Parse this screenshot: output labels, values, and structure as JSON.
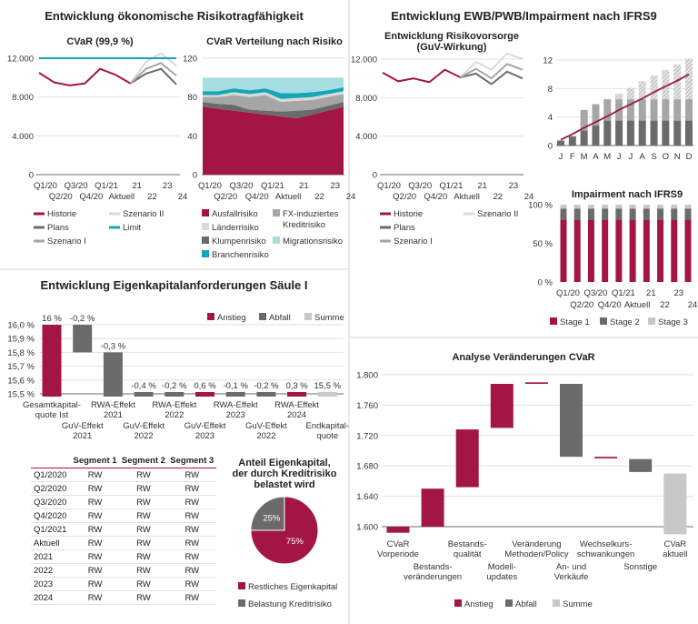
{
  "panels": {
    "risk": {
      "title": "Entwicklung ökonomische Risikotragfähigkeit"
    },
    "ifrs": {
      "title": "Entwicklung EWB/PWB/Impairment nach IFRS9"
    },
    "capital": {
      "title": "Entwicklung Eigenkapitalanforderungen Säule I"
    }
  },
  "colors": {
    "red": "#a31545",
    "dark": "#6b6b6b",
    "mid": "#a6a6a6",
    "light": "#d9d9d9",
    "teal": "#17a5b5",
    "light_teal": "#a5dde2"
  },
  "table": {
    "headers": [
      "",
      "Segment 1",
      "Segment 2",
      "Segment 3"
    ],
    "rows": [
      [
        "Q1/2020",
        "RW",
        "RW",
        "RW"
      ],
      [
        "Q2/2020",
        "RW",
        "RW",
        "RW"
      ],
      [
        "Q3/2020",
        "RW",
        "RW",
        "RW"
      ],
      [
        "Q4/2020",
        "RW",
        "RW",
        "RW"
      ],
      [
        "Q1/2021",
        "RW",
        "RW",
        "RW"
      ],
      [
        "Aktuell",
        "RW",
        "RW",
        "RW"
      ],
      [
        "2021",
        "RW",
        "RW",
        "RW"
      ],
      [
        "2022",
        "RW",
        "RW",
        "RW"
      ],
      [
        "2023",
        "RW",
        "RW",
        "RW"
      ],
      [
        "2024",
        "RW",
        "RW",
        "RW"
      ]
    ]
  },
  "chart_data": [
    {
      "type": "line",
      "title": [
        "CVaR (99,9 %)"
      ],
      "categories": [
        "Q1/20",
        "Q2/20",
        "Q3/20",
        "Q4/20",
        "Q1/21",
        "Aktuell",
        "21",
        "22",
        "23",
        "24"
      ],
      "ylim": [
        0,
        12000
      ],
      "yticks": [
        0,
        4000,
        8000,
        12000
      ],
      "ytick_labels": [
        "0",
        "4.000",
        "8.000",
        "12.000"
      ],
      "grid": true,
      "legend": "bottom",
      "series": [
        {
          "name": "Historie",
          "color": "#a31545",
          "values": [
            10500,
            9500,
            9200,
            9400,
            10900,
            10300,
            9400,
            null,
            null,
            null
          ]
        },
        {
          "name": "Szenario II",
          "color": "#dadada",
          "values": [
            null,
            null,
            null,
            null,
            null,
            null,
            9400,
            11600,
            12500,
            11200
          ]
        },
        {
          "name": "Plans",
          "color": "#6b6b6b",
          "values": [
            null,
            null,
            null,
            null,
            null,
            null,
            9400,
            10400,
            10900,
            9300
          ]
        },
        {
          "name": "Limit",
          "color": "#17a5b5",
          "values": [
            12000,
            12000,
            12000,
            12000,
            12000,
            12000,
            12000,
            12000,
            12000,
            12000
          ]
        },
        {
          "name": "Szenario I",
          "color": "#a6a6a6",
          "values": [
            null,
            null,
            null,
            null,
            null,
            null,
            9400,
            10900,
            11500,
            10200
          ]
        }
      ]
    },
    {
      "type": "area",
      "title": [
        "CVaR Verteilung nach Risiko"
      ],
      "categories": [
        "Q1/20",
        "Q2/20",
        "Q3/20",
        "Q4/20",
        "Q1/21",
        "Aktuell",
        "21",
        "22",
        "23",
        "24"
      ],
      "ylim": [
        0,
        120
      ],
      "yticks": [
        0,
        40,
        80,
        120
      ],
      "ytick_labels": [
        "0",
        "40",
        "80",
        "120"
      ],
      "grid": true,
      "legend": "bottom",
      "stacked": true,
      "series": [
        {
          "name": "Ausfallrisiko",
          "color": "#a31545",
          "values": [
            70,
            68,
            66,
            64,
            62,
            60,
            58,
            62,
            66,
            70
          ]
        },
        {
          "name": "Klumpenrisiko",
          "color": "#6b6b6b",
          "values": [
            5,
            5,
            6,
            3,
            4,
            5,
            8,
            5,
            5,
            5
          ]
        },
        {
          "name": [
            "FX-induziertes",
            "Kreditrisiko"
          ],
          "color": "#a6a6a6",
          "values": [
            5,
            7,
            10,
            13,
            16,
            10,
            10,
            10,
            9,
            8
          ]
        },
        {
          "name": "Länderrisiko",
          "color": "#d9d9d9",
          "values": [
            2,
            2,
            3,
            3,
            3,
            3,
            3,
            3,
            3,
            3
          ]
        },
        {
          "name": "Branchenrisiko",
          "color": "#17a5b5",
          "values": [
            4,
            4,
            4,
            4,
            4,
            6,
            5,
            5,
            4,
            4
          ]
        },
        {
          "name": "Migrationsrisiko",
          "color": "#a5dde2",
          "values": [
            14,
            14,
            11,
            13,
            11,
            16,
            16,
            15,
            13,
            10
          ]
        }
      ]
    },
    {
      "type": "line",
      "title": [
        "Entwicklung Risikovorsorge",
        "(GuV-Wirkung)"
      ],
      "categories": [
        "Q1/20",
        "Q2/20",
        "Q3/20",
        "Q4/20",
        "Q1/21",
        "Aktuell",
        "21",
        "22",
        "23",
        "24"
      ],
      "ylim": [
        0,
        12000
      ],
      "yticks": [
        0,
        4000,
        8000,
        12000
      ],
      "ytick_labels": [
        "0",
        "4.000",
        "8.000",
        "12.000"
      ],
      "grid": true,
      "legend": "bottom",
      "series": [
        {
          "name": "Historie",
          "color": "#a31545",
          "values": [
            10600,
            9700,
            10000,
            9600,
            10900,
            10100,
            null,
            null,
            null,
            null
          ]
        },
        {
          "name": "Szenario II",
          "color": "#dadada",
          "values": [
            null,
            null,
            null,
            null,
            null,
            10100,
            11700,
            10900,
            12600,
            12000
          ]
        },
        {
          "name": "Plans",
          "color": "#6b6b6b",
          "values": [
            null,
            null,
            null,
            null,
            null,
            10100,
            10500,
            9400,
            10700,
            10000
          ]
        },
        {
          "name": "Szenario I",
          "color": "#a6a6a6",
          "values": [
            null,
            null,
            null,
            null,
            null,
            10100,
            11000,
            10000,
            11500,
            10900
          ]
        }
      ]
    },
    {
      "type": "bar",
      "stacked": true,
      "categories": [
        "J",
        "F",
        "M",
        "A",
        "M",
        "J",
        "J",
        "A",
        "S",
        "O",
        "N",
        "D"
      ],
      "ylim": [
        0,
        12
      ],
      "yticks": [
        0,
        4,
        8,
        12
      ],
      "ytick_labels": [
        "0",
        "4",
        "8",
        "12"
      ],
      "grid": true,
      "series": [
        {
          "color": "#6b6b6b",
          "values": [
            0.7,
            1.3,
            2.1,
            2.8,
            3.5,
            3.5,
            3.5,
            3.5,
            3.5,
            3.5,
            3.5,
            3.5
          ]
        },
        {
          "color": "#a6a6a6",
          "values": [
            0,
            0,
            2.9,
            3.0,
            3.0,
            3.0,
            3.0,
            3.0,
            3.0,
            3.0,
            3.0,
            3.0
          ]
        },
        {
          "color": "#c8c8c8",
          "pattern": "hatched",
          "values": [
            0,
            0,
            0,
            0,
            0,
            0.8,
            1.6,
            2.5,
            3.3,
            4.1,
            4.9,
            5.7
          ]
        }
      ],
      "line": {
        "color": "#a31545",
        "values": [
          0.8,
          1.6,
          2.5,
          3.3,
          4.1,
          5.0,
          5.8,
          6.6,
          7.5,
          8.3,
          9.1,
          10.0
        ]
      }
    },
    {
      "type": "bar",
      "stacked": true,
      "title": [
        "Impairment nach IFRS9"
      ],
      "categories": [
        "Q1/20",
        "Q2/20",
        "Q3/20",
        "Q4/20",
        "Q1/21",
        "Aktuell",
        "21",
        "22",
        "23",
        "24"
      ],
      "ylim": [
        0,
        100
      ],
      "yticks": [
        0,
        50,
        100
      ],
      "ytick_labels": [
        "0 %",
        "50 %",
        "100 %"
      ],
      "legend": "bottom",
      "series": [
        {
          "name": "Stage 1",
          "color": "#a31545",
          "values": [
            80,
            80,
            80,
            80,
            80,
            80,
            80,
            80,
            80,
            80
          ]
        },
        {
          "name": "Stage 2",
          "color": "#6b6b6b",
          "values": [
            15,
            15,
            15,
            15,
            15,
            15,
            15,
            15,
            15,
            15
          ]
        },
        {
          "name": "Stage 3",
          "color": "#c8c8c8",
          "values": [
            5,
            5,
            5,
            5,
            5,
            5,
            5,
            5,
            5,
            5
          ]
        }
      ]
    },
    {
      "type": "bar",
      "subtype": "waterfall",
      "categories": [
        [
          "Gesamtkapital-",
          "quote Ist"
        ],
        [
          "GuV-Effekt",
          "2021"
        ],
        [
          "RWA-Effekt",
          "2021"
        ],
        [
          "GuV-Effekt",
          "2022"
        ],
        [
          "RWA-Effekt",
          "2022"
        ],
        [
          "GuV-Effekt",
          "2023"
        ],
        [
          "RWA-Effekt",
          "2023"
        ],
        [
          "GuV-Effekt",
          "2022"
        ],
        [
          "RWA-Effekt",
          "2024"
        ],
        [
          "Endkapital-",
          "quote"
        ]
      ],
      "values": [
        16.0,
        -0.2,
        -0.3,
        -0.4,
        -0.2,
        0.6,
        -0.1,
        -0.2,
        0.3,
        15.5
      ],
      "kinds": [
        "increase",
        "decrease",
        "decrease",
        "decrease",
        "decrease",
        "increase",
        "decrease",
        "decrease",
        "increase",
        "total"
      ],
      "data_labels": [
        "16 %",
        "-0,2 %",
        "-0,3 %",
        "-0,4 %",
        "-0,2 %",
        "0,6 %",
        "-0,1 %",
        "-0,2 %",
        "0,3 %",
        "15,5 %"
      ],
      "ylim": [
        15.5,
        16.0
      ],
      "yticks": [
        15.5,
        15.6,
        15.7,
        15.8,
        15.9,
        16.0
      ],
      "ytick_labels": [
        "15,5 %",
        "15,6 %",
        "15,7 %",
        "15,8 %",
        "15,9 %",
        "16,0 %"
      ],
      "grid": true,
      "legend": "top-right",
      "legend_items": [
        {
          "name": "Anstieg",
          "color": "#a31545"
        },
        {
          "name": "Abfall",
          "color": "#6b6b6b"
        },
        {
          "name": "Summe",
          "color": "#c8c8c8"
        }
      ]
    },
    {
      "type": "pie",
      "title": [
        "Anteil Eigenkapital,",
        "der durch Kreditrisiko",
        "belastet wird"
      ],
      "slices": [
        {
          "name": "Restliches Eigenkapital",
          "value": 75,
          "label": "75%",
          "color": "#a31545"
        },
        {
          "name": "Belastung Kreditrisiko",
          "value": 25,
          "label": "25%",
          "color": "#6b6b6b"
        }
      ],
      "legend": "bottom"
    },
    {
      "type": "bar",
      "subtype": "waterfall",
      "title": [
        "Analyse Veränderungen CVaR"
      ],
      "categories": [
        [
          "CVaR",
          "Vorperiode"
        ],
        [
          "Bestands-",
          "veränderungen"
        ],
        [
          "Bestands-",
          "qualität"
        ],
        [
          "Modell-",
          "updates"
        ],
        [
          "Veränderung",
          "Methoden/Policy"
        ],
        [
          "An- und",
          "Verkäufe"
        ],
        [
          "Wechselkurs-",
          "schwankungen"
        ],
        [
          "Sonstige"
        ],
        [
          "CVaR",
          "aktuell"
        ]
      ],
      "ranges": [
        [
          1592,
          1600
        ],
        [
          1600,
          1650
        ],
        [
          1652,
          1728
        ],
        [
          1730,
          1788
        ],
        [
          1788,
          1790
        ],
        [
          1692,
          1788
        ],
        [
          1690,
          1692
        ],
        [
          1672,
          1689
        ],
        [
          1590,
          1670
        ]
      ],
      "kinds": [
        "increase",
        "increase",
        "increase",
        "increase",
        "increase",
        "decrease",
        "increase",
        "decrease",
        "total"
      ],
      "ylim": [
        1600,
        1800
      ],
      "yticks": [
        1600,
        1640,
        1680,
        1720,
        1760,
        1800
      ],
      "ytick_labels": [
        "1.600",
        "1.640",
        "1.680",
        "1.720",
        "1.760",
        "1.800"
      ],
      "grid": true,
      "legend": "bottom",
      "legend_items": [
        {
          "name": "Anstieg",
          "color": "#a31545"
        },
        {
          "name": "Abfall",
          "color": "#6b6b6b"
        },
        {
          "name": "Summe",
          "color": "#c8c8c8"
        }
      ]
    }
  ]
}
